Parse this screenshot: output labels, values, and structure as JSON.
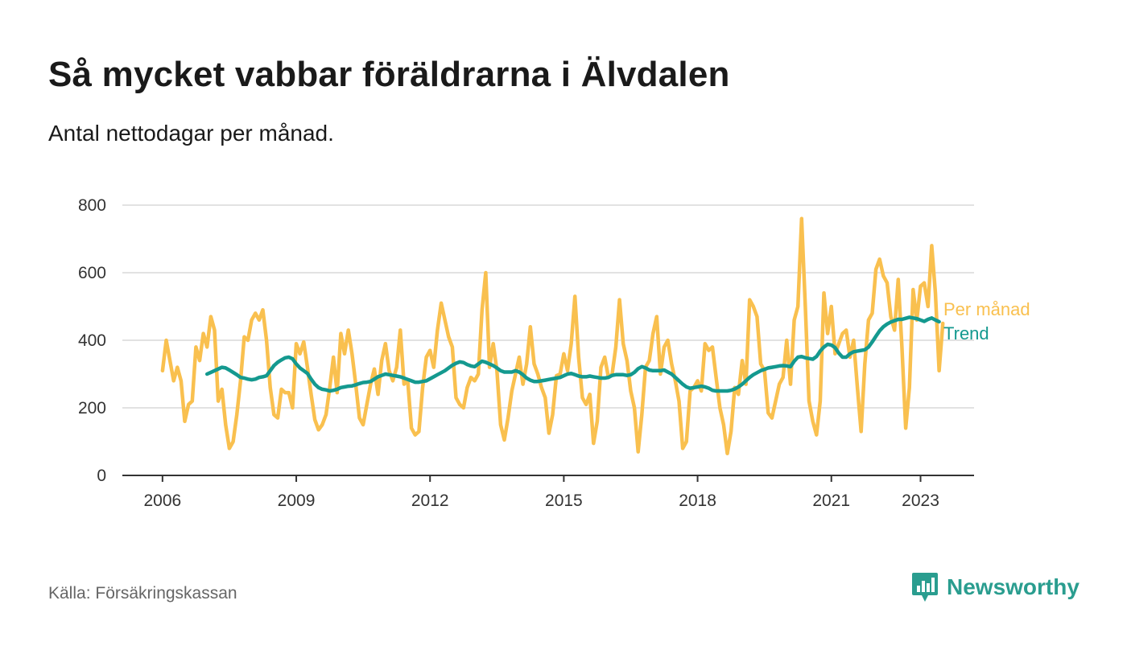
{
  "header": {
    "title": "Så mycket vabbar föräldrarna i Älvdalen",
    "subtitle": "Antal nettodagar per månad."
  },
  "footer": {
    "source": "Källa: Försäkringskassan",
    "brand": "Newsworthy",
    "brand_icon": "bar-chart-speech-bubble-icon"
  },
  "colors": {
    "per_manad": "#F9C04F",
    "trend": "#14998F",
    "grid": "#d9d9d9",
    "axis": "#333333"
  },
  "chart_data": {
    "type": "line",
    "title": "Så mycket vabbar föräldrarna i Älvdalen",
    "subtitle": "Antal nettodagar per månad.",
    "xlabel": "",
    "ylabel": "",
    "ylim": [
      0,
      800
    ],
    "yticks": [
      0,
      200,
      400,
      600,
      800
    ],
    "xticks": [
      2006,
      2009,
      2012,
      2015,
      2018,
      2021,
      2023
    ],
    "xlim": [
      2005.1,
      2024.2
    ],
    "grid": true,
    "legend": "right-end labels",
    "series": [
      {
        "name": "Per månad",
        "x_start": 2006.0,
        "x_step": 0.083333,
        "values": [
          310,
          400,
          340,
          280,
          320,
          280,
          160,
          210,
          220,
          380,
          340,
          420,
          380,
          470,
          430,
          220,
          255,
          150,
          80,
          100,
          180,
          280,
          410,
          400,
          460,
          480,
          460,
          490,
          400,
          260,
          180,
          170,
          255,
          245,
          245,
          200,
          390,
          360,
          395,
          320,
          240,
          165,
          135,
          150,
          180,
          260,
          350,
          245,
          420,
          360,
          430,
          360,
          270,
          170,
          150,
          210,
          270,
          315,
          240,
          340,
          390,
          310,
          280,
          320,
          430,
          270,
          280,
          140,
          120,
          130,
          260,
          350,
          370,
          320,
          430,
          510,
          460,
          410,
          380,
          230,
          210,
          200,
          260,
          290,
          280,
          300,
          490,
          600,
          320,
          390,
          310,
          150,
          105,
          170,
          250,
          300,
          350,
          270,
          330,
          440,
          330,
          300,
          260,
          230,
          125,
          180,
          295,
          300,
          360,
          310,
          390,
          530,
          350,
          230,
          210,
          240,
          95,
          160,
          320,
          350,
          290,
          300,
          380,
          520,
          390,
          340,
          250,
          200,
          70,
          180,
          320,
          340,
          420,
          470,
          300,
          380,
          400,
          330,
          280,
          220,
          80,
          100,
          250,
          260,
          280,
          250,
          390,
          370,
          380,
          290,
          200,
          150,
          65,
          130,
          260,
          240,
          340,
          270,
          520,
          500,
          470,
          330,
          310,
          185,
          170,
          220,
          270,
          290,
          400,
          270,
          460,
          500,
          760,
          500,
          220,
          160,
          120,
          220,
          540,
          420,
          500,
          360,
          390,
          420,
          430,
          350,
          400,
          260,
          130,
          330,
          460,
          480,
          610,
          640,
          590,
          570,
          470,
          430,
          580,
          380,
          140,
          260,
          550,
          460,
          560,
          570,
          500,
          680,
          540,
          310,
          450
        ]
      },
      {
        "name": "Trend",
        "x_start": 2007.0,
        "x_step": 0.083333,
        "values": [
          300,
          305,
          310,
          315,
          320,
          318,
          312,
          305,
          298,
          290,
          288,
          285,
          283,
          285,
          290,
          292,
          295,
          310,
          325,
          335,
          342,
          348,
          350,
          345,
          330,
          318,
          310,
          302,
          285,
          270,
          260,
          255,
          253,
          250,
          252,
          255,
          260,
          262,
          264,
          265,
          268,
          272,
          275,
          276,
          278,
          285,
          292,
          296,
          300,
          298,
          296,
          294,
          292,
          288,
          284,
          280,
          276,
          276,
          278,
          280,
          286,
          292,
          298,
          304,
          310,
          318,
          326,
          332,
          336,
          334,
          328,
          324,
          322,
          330,
          338,
          335,
          330,
          325,
          318,
          310,
          306,
          306,
          306,
          310,
          306,
          298,
          288,
          282,
          278,
          278,
          280,
          282,
          284,
          286,
          288,
          290,
          295,
          300,
          302,
          298,
          294,
          292,
          292,
          294,
          292,
          290,
          288,
          288,
          290,
          296,
          298,
          298,
          298,
          296,
          298,
          305,
          316,
          322,
          318,
          312,
          310,
          310,
          310,
          312,
          306,
          300,
          290,
          280,
          270,
          262,
          258,
          260,
          262,
          264,
          262,
          258,
          252,
          250,
          250,
          250,
          250,
          252,
          256,
          262,
          270,
          280,
          290,
          298,
          304,
          310,
          314,
          318,
          320,
          322,
          324,
          325,
          324,
          322,
          338,
          350,
          352,
          348,
          346,
          344,
          352,
          368,
          380,
          388,
          386,
          378,
          362,
          350,
          350,
          360,
          366,
          368,
          370,
          372,
          380,
          395,
          412,
          428,
          440,
          448,
          454,
          458,
          462,
          462,
          465,
          468,
          466,
          464,
          460,
          456,
          462,
          466,
          460,
          455
        ]
      }
    ]
  }
}
